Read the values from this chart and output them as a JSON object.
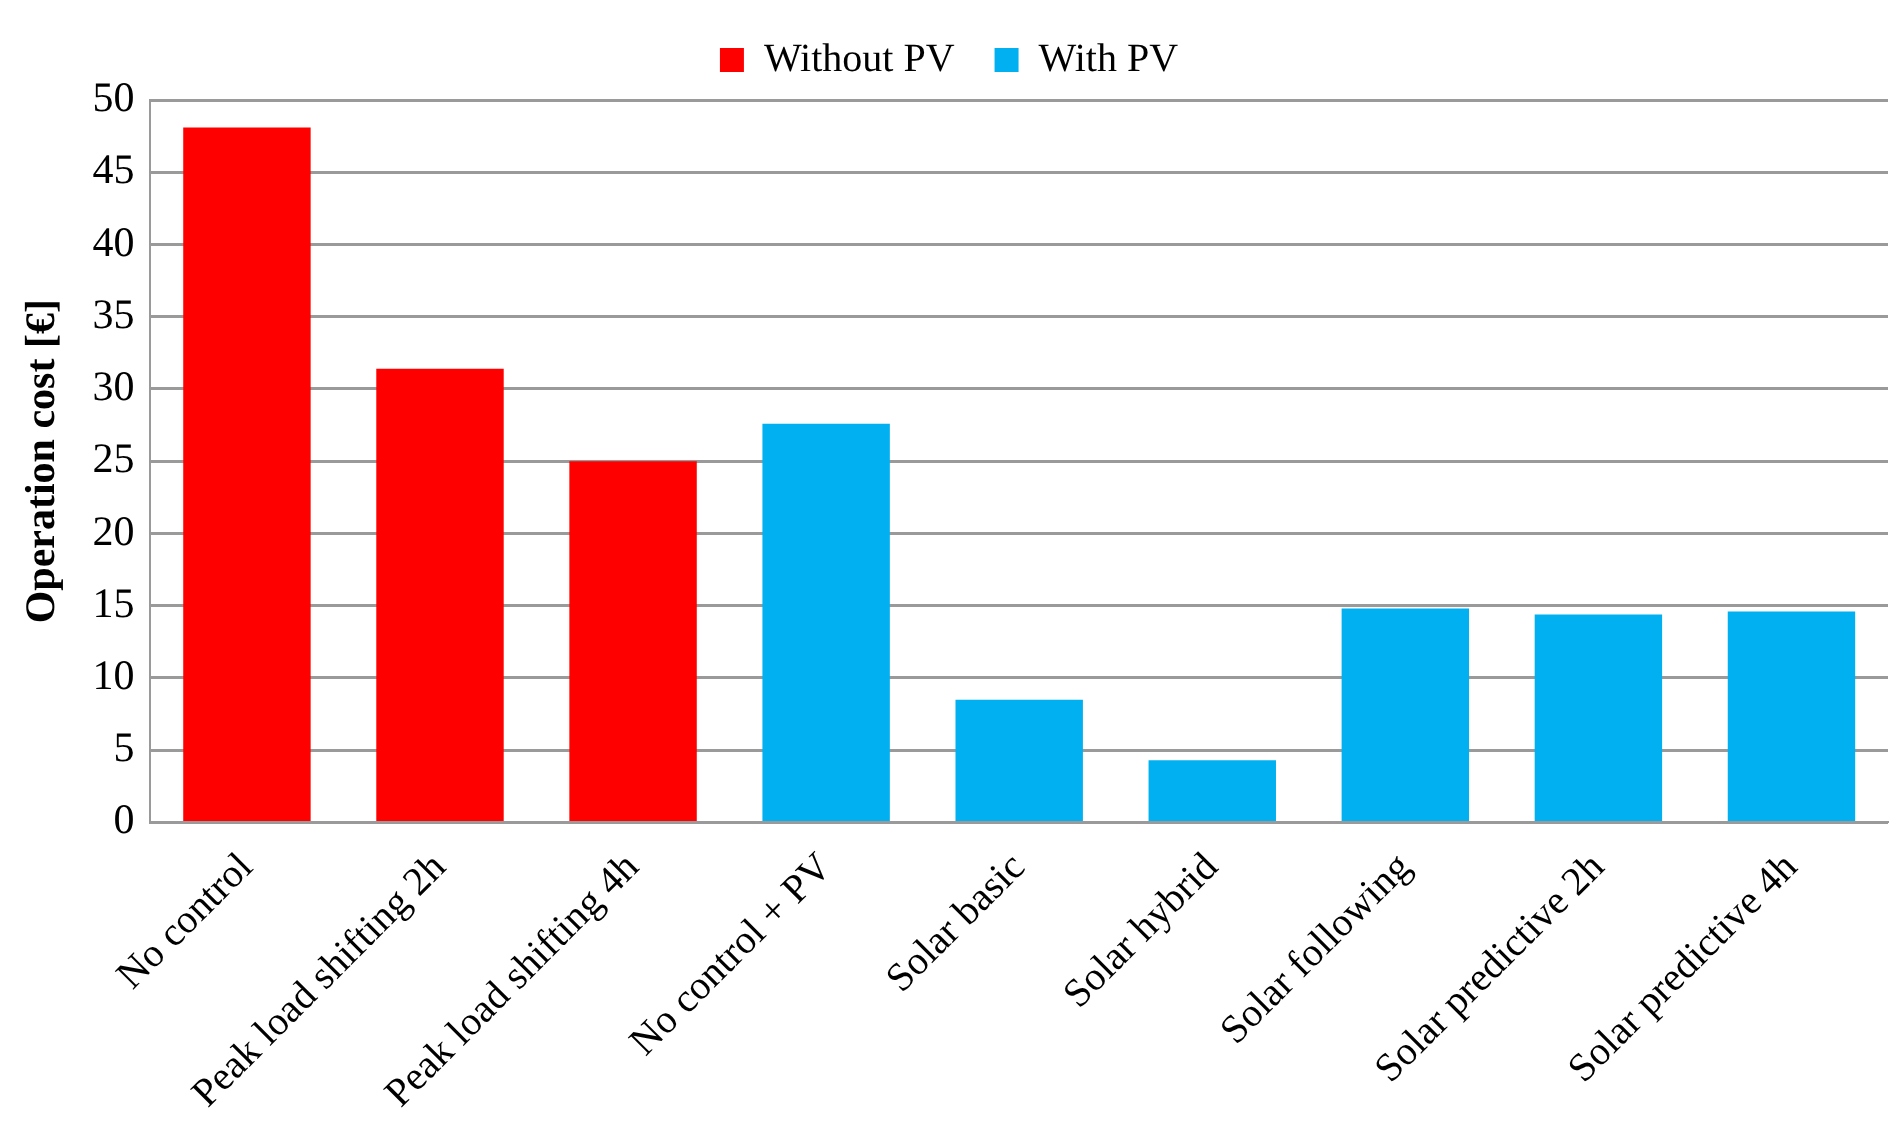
{
  "chart_data": {
    "type": "bar",
    "ylabel": "Operation cost [€]",
    "categories": [
      "No control",
      "Peak load shifting 2h",
      "Peak load shifting 4h",
      "No control + PV",
      "Solar basic",
      "Solar hybrid",
      "Solar following",
      "Solar predictive 2h",
      "Solar predictive 4h"
    ],
    "series": [
      {
        "name": "Without PV",
        "color": "#ff0000",
        "values": [
          48.1,
          31.4,
          25,
          null,
          null,
          null,
          null,
          null,
          null
        ]
      },
      {
        "name": "With PV",
        "color": "#00b0f0",
        "values": [
          null,
          null,
          null,
          27.6,
          8.5,
          4.3,
          14.8,
          14.4,
          14.6
        ]
      }
    ],
    "ylim": [
      0,
      50
    ],
    "yticks": [
      0,
      5,
      10,
      15,
      20,
      25,
      30,
      35,
      40,
      45,
      50
    ],
    "grid": "y",
    "legend": "top"
  }
}
